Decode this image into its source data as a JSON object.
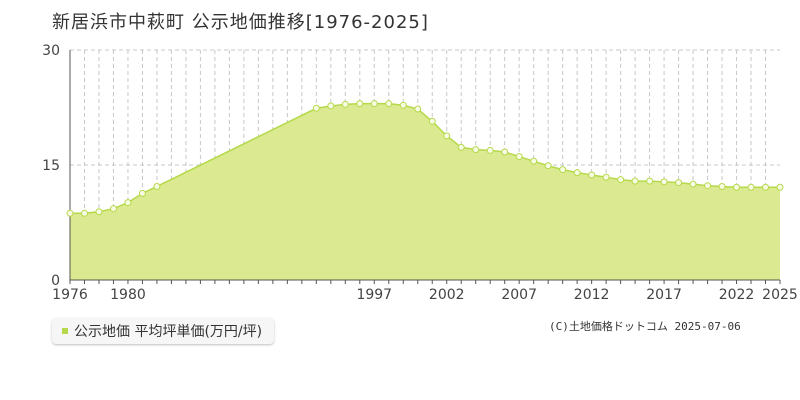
{
  "title": "新居浜市中萩町 公示地価推移[1976-2025]",
  "legend": {
    "label": "公示地価 平均坪単価(万円/坪)"
  },
  "credit": "(C)土地価格ドットコム 2025-07-06",
  "colors": {
    "fill": "#dbea90",
    "line": "#b5d94a",
    "point_fill": "#f7fbe4",
    "grid": "#c8c8c8"
  },
  "chart_data": {
    "type": "area",
    "title": "",
    "xlabel": "",
    "ylabel": "",
    "ylim": [
      0,
      30
    ],
    "yticks": [
      "0",
      "15",
      "30"
    ],
    "xticks": [
      "1976",
      "1980",
      "1997",
      "2002",
      "2007",
      "2012",
      "2017",
      "2022",
      "2025"
    ],
    "grid": true,
    "series": [
      {
        "points": [
          [
            1976,
            8.7
          ],
          [
            1977,
            8.7
          ],
          [
            1978,
            8.9
          ],
          [
            1979,
            9.3
          ],
          [
            1980,
            10.1
          ],
          [
            1981,
            11.3
          ],
          [
            1982,
            12.2
          ],
          [
            1993,
            22.4
          ],
          [
            1994,
            22.7
          ],
          [
            1995,
            22.9
          ],
          [
            1996,
            23.0
          ],
          [
            1997,
            23.0
          ],
          [
            1998,
            23.0
          ],
          [
            1999,
            22.8
          ],
          [
            2000,
            22.3
          ],
          [
            2001,
            20.7
          ],
          [
            2002,
            18.8
          ],
          [
            2003,
            17.3
          ],
          [
            2004,
            17.0
          ],
          [
            2005,
            16.9
          ],
          [
            2006,
            16.7
          ],
          [
            2007,
            16.1
          ],
          [
            2008,
            15.5
          ],
          [
            2009,
            14.9
          ],
          [
            2010,
            14.4
          ],
          [
            2011,
            14.0
          ],
          [
            2012,
            13.7
          ],
          [
            2013,
            13.4
          ],
          [
            2014,
            13.1
          ],
          [
            2015,
            12.9
          ],
          [
            2016,
            12.9
          ],
          [
            2017,
            12.8
          ],
          [
            2018,
            12.7
          ],
          [
            2019,
            12.5
          ],
          [
            2020,
            12.3
          ],
          [
            2021,
            12.2
          ],
          [
            2022,
            12.1
          ],
          [
            2023,
            12.1
          ],
          [
            2024,
            12.1
          ]
        ]
      }
    ]
  }
}
